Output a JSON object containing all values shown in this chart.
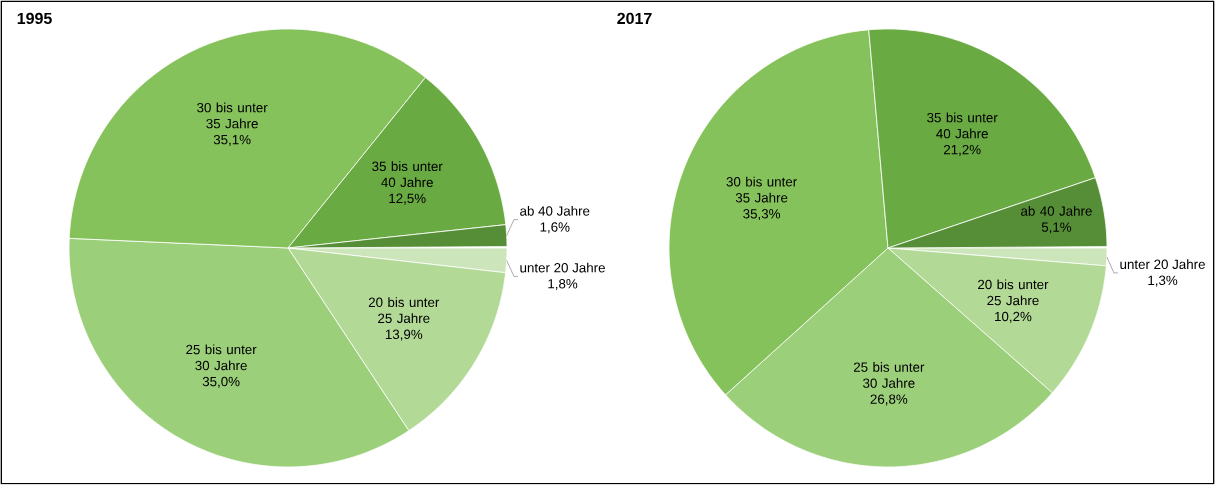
{
  "chart_data": [
    {
      "type": "pie",
      "title": "1995",
      "categories": [
        "unter 20 Jahre",
        "20 bis unter 25 Jahre",
        "25 bis unter 30 Jahre",
        "30 bis unter 35 Jahre",
        "35 bis unter 40 Jahre",
        "ab 40 Jahre"
      ],
      "values": [
        1.8,
        13.9,
        35.0,
        35.1,
        12.5,
        1.6
      ],
      "value_labels": [
        "1,8%",
        "13,9%",
        "35,0%",
        "35,1%",
        "12,5%",
        "1,6%"
      ],
      "colors": [
        "#cde5ba",
        "#b3d997",
        "#9ccf7a",
        "#86c25b",
        "#69aa42",
        "#558e36"
      ]
    },
    {
      "type": "pie",
      "title": "2017",
      "categories": [
        "unter 20 Jahre",
        "20 bis unter 25 Jahre",
        "25 bis unter 30 Jahre",
        "30 bis unter 35 Jahre",
        "35 bis unter 40 Jahre",
        "ab 40 Jahre"
      ],
      "values": [
        1.3,
        10.2,
        26.8,
        35.3,
        21.2,
        5.1
      ],
      "value_labels": [
        "1,3%",
        "10,2%",
        "26,8%",
        "35,3%",
        "21,2%",
        "5,1%"
      ],
      "colors": [
        "#cde5ba",
        "#b3d997",
        "#9ccf7a",
        "#86c25b",
        "#69aa42",
        "#558e36"
      ]
    }
  ]
}
